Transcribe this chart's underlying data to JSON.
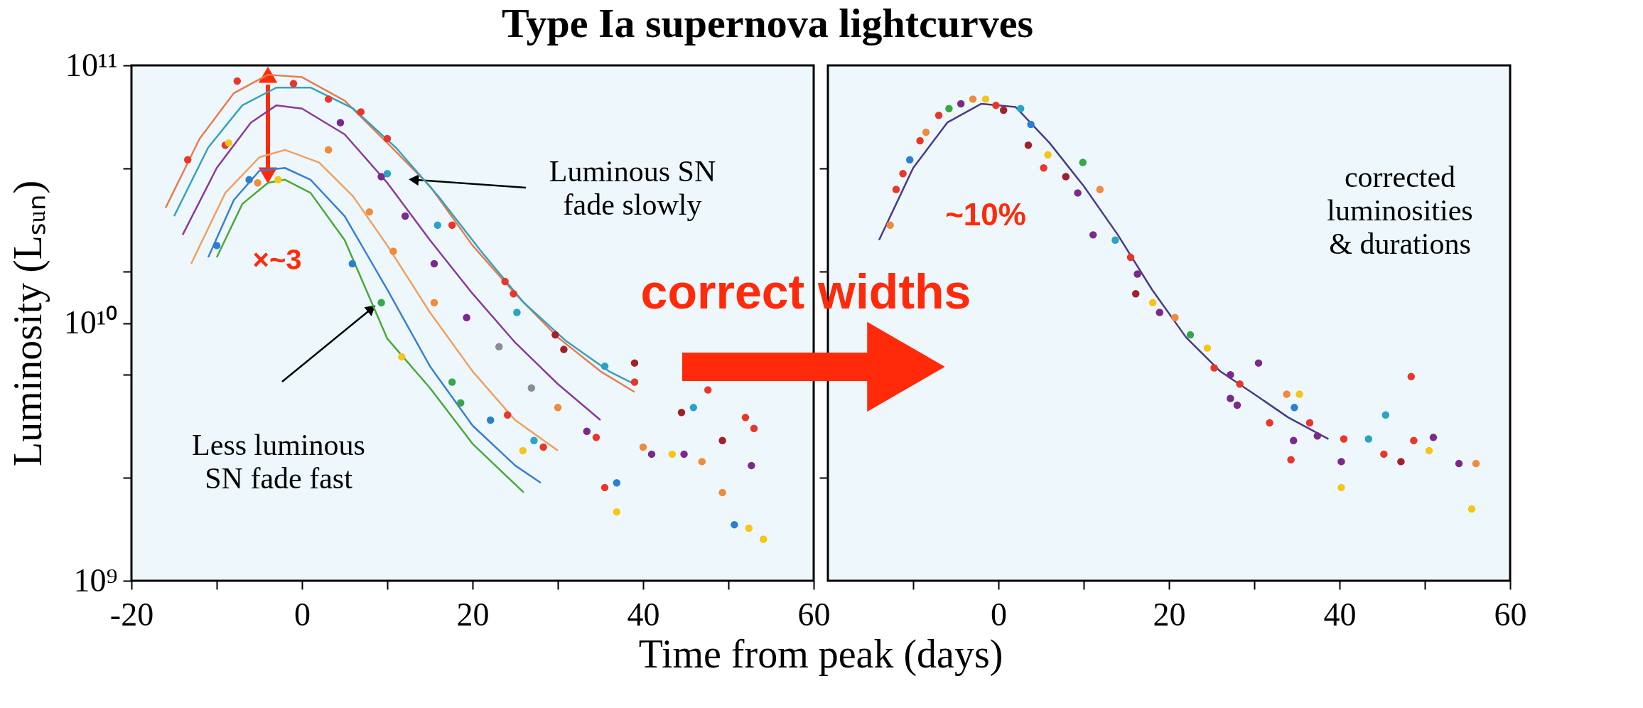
{
  "chart_data": [
    {
      "type": "line",
      "title": "Type Ia supernova lightcurves",
      "xlabel": "Time from peak (days)",
      "ylabel": "Luminosity (Lₛᵤₙ)",
      "xlim": [
        -20,
        60
      ],
      "xticks": [
        -20,
        {
          "value": -10,
          "label": null
        },
        0,
        {
          "value": 10,
          "label": null
        },
        20,
        {
          "value": 30,
          "label": null
        },
        40,
        {
          "value": 50,
          "label": null
        },
        60
      ],
      "ylim": [
        1000000000.0,
        100000000000.0
      ],
      "yticks": [
        {
          "value": 1000000000.0,
          "label": "10⁹"
        },
        {
          "value": 2512000000.0,
          "label": null
        },
        {
          "value": 6310000000.0,
          "label": null
        },
        {
          "value": 10000000000.0,
          "label": "10¹⁰"
        },
        {
          "value": 15850000000.0,
          "label": null
        },
        {
          "value": 39810000000.0,
          "label": null
        },
        {
          "value": 100000000000.0,
          "label": "10¹¹"
        }
      ],
      "log": true,
      "grid": false,
      "series": [
        {
          "color": "#e57c52",
          "x": [
            -16,
            -12,
            -8,
            -4,
            0,
            5,
            10,
            15,
            20,
            25,
            30,
            35,
            39
          ],
          "values": [
            28000000000.0,
            52000000000.0,
            78000000000.0,
            92000000000.0,
            90000000000.0,
            73000000000.0,
            50000000000.0,
            34000000000.0,
            20000000000.0,
            13000000000.0,
            8800000000.0,
            6500000000.0,
            5400000000.0
          ]
        },
        {
          "color": "#3aa0b8",
          "x": [
            -15,
            -11,
            -7,
            -3,
            1,
            6,
            11,
            16,
            21,
            26,
            31,
            36,
            39
          ],
          "values": [
            26000000000.0,
            48000000000.0,
            70000000000.0,
            82000000000.0,
            82000000000.0,
            68000000000.0,
            48000000000.0,
            31000000000.0,
            19000000000.0,
            12000000000.0,
            8500000000.0,
            6500000000.0,
            5800000000.0
          ]
        },
        {
          "color": "#8a3a9a",
          "x": [
            -14,
            -10,
            -6,
            -3,
            0,
            5,
            10,
            15,
            20,
            25,
            30,
            35
          ],
          "values": [
            22000000000.0,
            40000000000.0,
            60000000000.0,
            70000000000.0,
            68000000000.0,
            54000000000.0,
            35000000000.0,
            21000000000.0,
            13000000000.0,
            8400000000.0,
            5800000000.0,
            4200000000.0
          ]
        },
        {
          "color": "#f0a060",
          "x": [
            -13,
            -9,
            -5,
            -2,
            2,
            6,
            10,
            15,
            20,
            25,
            30
          ],
          "values": [
            17000000000.0,
            32000000000.0,
            44000000000.0,
            47000000000.0,
            42000000000.0,
            31000000000.0,
            20000000000.0,
            11000000000.0,
            6500000000.0,
            4200000000.0,
            3200000000.0
          ]
        },
        {
          "color": "#3a7fd0",
          "x": [
            -11,
            -8,
            -5,
            -2,
            1,
            5,
            10,
            15,
            20,
            25,
            28
          ],
          "values": [
            18000000000.0,
            30000000000.0,
            39000000000.0,
            40000000000.0,
            36000000000.0,
            26000000000.0,
            13500000000.0,
            6800000000.0,
            4000000000.0,
            2800000000.0,
            2400000000.0
          ]
        },
        {
          "color": "#4aa83a",
          "x": [
            -10,
            -7,
            -4,
            -2,
            1,
            5,
            10,
            15,
            20,
            26
          ],
          "values": [
            18000000000.0,
            29000000000.0,
            35000000000.0,
            36000000000.0,
            32000000000.0,
            21000000000.0,
            8700000000.0,
            5600000000.0,
            3400000000.0,
            2200000000.0
          ]
        },
        {
          "type": "scatter",
          "marker": "circle",
          "x": [
            -7.6,
            -13.4,
            -9,
            -1,
            3.1,
            6.9,
            10,
            17.6,
            23.8,
            24.8,
            4.5,
            9.3,
            12.1,
            15.5,
            19.3,
            15.9,
            10,
            25.2,
            -8.6,
            -5.2,
            3.1,
            7.9,
            10.7,
            15.5,
            -6.2,
            -2.8,
            5.9,
            9.3,
            -10,
            11.7,
            17.6,
            18.6,
            22.1,
            24.1,
            25.9,
            27.2,
            28.3,
            23.1,
            29.7,
            30.7,
            26.9,
            30,
            33.4,
            34.5,
            35.5,
            39,
            39,
            35.5,
            36.9,
            36.9,
            40,
            44.5,
            45.9,
            47.6,
            44.8,
            46.9,
            49.3,
            52,
            53,
            52.7,
            49.3,
            50.7,
            52.4,
            54.1,
            41,
            43.4
          ],
          "values": [
            87000000000.0,
            43000000000.0,
            49000000000.0,
            85000000000.0,
            74000000000.0,
            66000000000.0,
            52000000000.0,
            24000000000.0,
            14500000000.0,
            13000000000.0,
            60000000000.0,
            37000000000.0,
            26000000000.0,
            17000000000.0,
            10500000000.0,
            24000000000.0,
            38000000000.0,
            11000000000.0,
            50000000000.0,
            35000000000.0,
            47000000000.0,
            27000000000.0,
            19000000000.0,
            12000000000.0,
            36000000000.0,
            36000000000.0,
            17000000000.0,
            12000000000.0,
            20000000000.0,
            7400000000.0,
            5900000000.0,
            4900000000.0,
            4200000000.0,
            4400000000.0,
            3200000000.0,
            3500000000.0,
            3300000000.0,
            8100000000.0,
            9000000000.0,
            7900000000.0,
            5600000000.0,
            4700000000.0,
            3800000000.0,
            3600000000.0,
            6800000000.0,
            5900000000.0,
            7000000000.0,
            2300000000.0,
            2400000000.0,
            1850000000.0,
            3300000000.0,
            4500000000.0,
            4700000000.0,
            5500000000.0,
            3100000000.0,
            2900000000.0,
            3500000000.0,
            4300000000.0,
            3900000000.0,
            2800000000.0,
            2200000000.0,
            1650000000.0,
            1600000000.0,
            1450000000.0,
            3100000000.0,
            3100000000.0
          ],
          "colors": [
            "#e8372a",
            "#e8372a",
            "#e8372a",
            "#e8372a",
            "#e8372a",
            "#e8372a",
            "#e8372a",
            "#e8372a",
            "#e8372a",
            "#e8372a",
            "#7b2a8c",
            "#7b2a8c",
            "#7b2a8c",
            "#7b2a8c",
            "#7b2a8c",
            "#2aa3c4",
            "#2aa3c4",
            "#2aa3c4",
            "#f5c518",
            "#f08a3c",
            "#f08a3c",
            "#f08a3c",
            "#f08a3c",
            "#f08a3c",
            "#2b7fd0",
            "#f5c518",
            "#2b7fd0",
            "#3aa64a",
            "#2b7fd0",
            "#f5c518",
            "#3aa64a",
            "#3aa64a",
            "#2b7fd0",
            "#e8372a",
            "#f5c518",
            "#2aa3c4",
            "#e8372a",
            "#8c8c99",
            "#a3202a",
            "#a3202a",
            "#8c8c99",
            "#f08a3c",
            "#7b2a8c",
            "#e8372a",
            "#2aa3c4",
            "#e8372a",
            "#a3202a",
            "#e8372a",
            "#2b7fd0",
            "#f5c518",
            "#f08a3c",
            "#a3202a",
            "#2aa3c4",
            "#e8372a",
            "#7b2a8c",
            "#f08a3c",
            "#a3202a",
            "#e8372a",
            "#e8372a",
            "#7b2a8c",
            "#f08a3c",
            "#2b7fd0",
            "#f5c518",
            "#f5c518",
            "#7b2a8c",
            "#f5c518"
          ]
        }
      ],
      "annotations": [
        {
          "text": "Luminous SN fade slowly",
          "x": 13.1,
          "y": 36000000000.0
        },
        "Less luminous SN fade fast",
        "×~3"
      ]
    },
    {
      "type": "line",
      "tick_labels": "x",
      "xlim": [
        -20,
        60
      ],
      "xticks": [
        {
          "value": -10,
          "label": null
        },
        0,
        {
          "value": 10,
          "label": null
        },
        20,
        {
          "value": 30,
          "label": null
        },
        40,
        {
          "value": 50,
          "label": null
        },
        60
      ],
      "ylim": [
        1000000000.0,
        100000000000.0
      ],
      "yticks": [
        {
          "value": 2512000000.0,
          "label": null
        },
        {
          "value": 6310000000.0,
          "label": null
        },
        {
          "value": 15850000000.0,
          "label": null
        },
        {
          "value": 39810000000.0,
          "label": null
        }
      ],
      "log": true,
      "grid": false,
      "series": [
        {
          "color": "#4a3a8a",
          "x": [
            -14,
            -10,
            -6,
            -2,
            2,
            6,
            10,
            14,
            18,
            22,
            26,
            30,
            34,
            38.7
          ],
          "values": [
            21000000000.0,
            40000000000.0,
            60000000000.0,
            71000000000.0,
            69000000000.0,
            50000000000.0,
            34000000000.0,
            22000000000.0,
            13500000000.0,
            8800000000.0,
            6500000000.0,
            5300000000.0,
            4300000000.0,
            3550000000.0
          ]
        },
        {
          "type": "scatter",
          "marker": "circle",
          "x": [
            -12.7,
            -12,
            -11.2,
            -10.4,
            -9.2,
            -8.5,
            -7,
            -5.8,
            -4.4,
            -3,
            -1.5,
            -0.3,
            0.6,
            2.6,
            3.8,
            3.5,
            5.8,
            5.3,
            7.9,
            9.9,
            9.3,
            11.1,
            11.9,
            13.7,
            15.5,
            16.3,
            16.1,
            18.1,
            18.9,
            20.7,
            22.5,
            24.5,
            25.3,
            30.5,
            27.2,
            28.3,
            27.2,
            28,
            31.8,
            33.8,
            35.3,
            34.7,
            36.5,
            37.4,
            45.4,
            40.5,
            48.4,
            40.2,
            40.2,
            45.2,
            47.2,
            48.7,
            51,
            50.5,
            54,
            56,
            55.5,
            34.3,
            34.6,
            43.4
          ],
          "values": [
            24000000000.0,
            33000000000.0,
            38000000000.0,
            43000000000.0,
            51000000000.0,
            55000000000.0,
            64000000000.0,
            68000000000.0,
            71000000000.0,
            74000000000.0,
            74000000000.0,
            70000000000.0,
            67000000000.0,
            68000000000.0,
            59000000000.0,
            49000000000.0,
            45000000000.0,
            40000000000.0,
            37000000000.0,
            42000000000.0,
            32000000000.0,
            22000000000.0,
            33000000000.0,
            21000000000.0,
            18000000000.0,
            15500000000.0,
            13000000000.0,
            12000000000.0,
            11000000000.0,
            10500000000.0,
            9000000000.0,
            8000000000.0,
            6700000000.0,
            7000000000.0,
            6300000000.0,
            5800000000.0,
            5100000000.0,
            4800000000.0,
            4100000000.0,
            5300000000.0,
            5300000000.0,
            4700000000.0,
            4100000000.0,
            3650000000.0,
            4400000000.0,
            3550000000.0,
            6200000000.0,
            2900000000.0,
            2300000000.0,
            3100000000.0,
            2900000000.0,
            3500000000.0,
            3600000000.0,
            3200000000.0,
            2850000000.0,
            2850000000.0,
            1900000000.0,
            2950000000.0,
            3500000000.0,
            3550000000.0
          ],
          "colors": [
            "#f08a3c",
            "#e8372a",
            "#e8372a",
            "#2b7fd0",
            "#e8372a",
            "#f08a3c",
            "#e8372a",
            "#3aa64a",
            "#7b2a8c",
            "#f08a3c",
            "#f5c518",
            "#e8372a",
            "#a3202a",
            "#2aa3c4",
            "#2b7fd0",
            "#a3202a",
            "#f5c518",
            "#e8372a",
            "#a3202a",
            "#3aa64a",
            "#7b2a8c",
            "#7b2a8c",
            "#f08a3c",
            "#2aa3c4",
            "#e8372a",
            "#7b2a8c",
            "#a3202a",
            "#f5c518",
            "#7b2a8c",
            "#f08a3c",
            "#3aa64a",
            "#f5c518",
            "#e8372a",
            "#7b2a8c",
            "#7b2a8c",
            "#e8372a",
            "#7b2a8c",
            "#7b2a8c",
            "#e8372a",
            "#f08a3c",
            "#f5c518",
            "#2b7fd0",
            "#e8372a",
            "#7b2a8c",
            "#2aa3c4",
            "#e8372a",
            "#e8372a",
            "#7b2a8c",
            "#f5c518",
            "#e8372a",
            "#a3202a",
            "#e8372a",
            "#7b2a8c",
            "#f5c518",
            "#7b2a8c",
            "#f08a3c",
            "#f5c518",
            "#e8372a",
            "#7b2a8c",
            "#2aa3c4"
          ]
        }
      ],
      "annotations": [
        "correct widths",
        "~10%",
        "corrected luminosities & durations"
      ]
    }
  ]
}
